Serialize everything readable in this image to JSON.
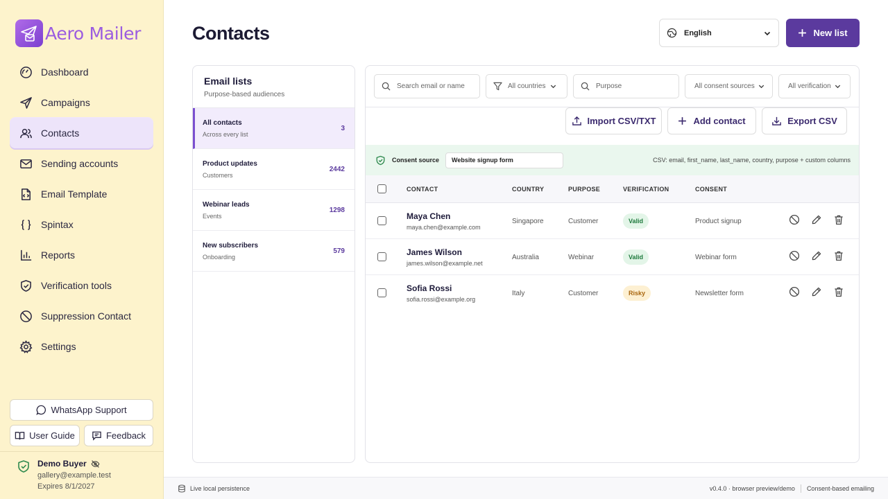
{
  "app": {
    "name": "Aero Mailer"
  },
  "nav": [
    {
      "label": "Dashboard",
      "icon": "dashboard-icon"
    },
    {
      "label": "Campaigns",
      "icon": "send-icon"
    },
    {
      "label": "Contacts",
      "icon": "users-icon",
      "active": true
    },
    {
      "label": "Sending accounts",
      "icon": "mail-icon"
    },
    {
      "label": "Email Template",
      "icon": "file-code-icon"
    },
    {
      "label": "Spintax",
      "icon": "braces-icon"
    },
    {
      "label": "Reports",
      "icon": "bar-chart-icon"
    },
    {
      "label": "Verification tools",
      "icon": "shield-check-icon"
    },
    {
      "label": "Suppression Contact",
      "icon": "ban-icon"
    },
    {
      "label": "Settings",
      "icon": "gear-icon"
    }
  ],
  "support": {
    "whatsapp": "WhatsApp Support",
    "guide": "User Guide",
    "feedback": "Feedback"
  },
  "user": {
    "name": "Demo Buyer",
    "email": "gallery@example.test",
    "expires": "Expires 8/1/2027"
  },
  "header": {
    "title": "Contacts",
    "language": "English",
    "new_list": "New list"
  },
  "lists": {
    "title": "Email lists",
    "subtitle": "Purpose-based audiences",
    "items": [
      {
        "name": "All contacts",
        "desc": "Across every list",
        "count": "3",
        "active": true
      },
      {
        "name": "Product updates",
        "desc": "Customers",
        "count": "2442"
      },
      {
        "name": "Webinar leads",
        "desc": "Events",
        "count": "1298"
      },
      {
        "name": "New subscribers",
        "desc": "Onboarding",
        "count": "579"
      }
    ]
  },
  "filters": {
    "search_placeholder": "Search email or name",
    "countries": "All countries",
    "purpose_placeholder": "Purpose",
    "consent_sources": "All consent sources",
    "verification": "All verification"
  },
  "actions": {
    "import": "Import CSV/TXT",
    "add": "Add contact",
    "export": "Export CSV"
  },
  "consent": {
    "label": "Consent source",
    "value": "Website signup form",
    "hint": "CSV: email, first_name, last_name, country, purpose + custom columns"
  },
  "table": {
    "headers": {
      "contact": "CONTACT",
      "country": "COUNTRY",
      "purpose": "PURPOSE",
      "verification": "VERIFICATION",
      "consent": "CONSENT"
    },
    "rows": [
      {
        "name": "Maya Chen",
        "email": "maya.chen@example.com",
        "country": "Singapore",
        "purpose": "Customer",
        "verification": "Valid",
        "consent": "Product signup"
      },
      {
        "name": "James Wilson",
        "email": "james.wilson@example.net",
        "country": "Australia",
        "purpose": "Webinar",
        "verification": "Valid",
        "consent": "Webinar form"
      },
      {
        "name": "Sofia Rossi",
        "email": "sofia.rossi@example.org",
        "country": "Italy",
        "purpose": "Customer",
        "verification": "Risky",
        "consent": "Newsletter form"
      }
    ]
  },
  "footer": {
    "left": "Live local persistence",
    "version": "v0.4.0 · browser preview/demo",
    "right": "Consent-based emailing"
  },
  "colors": {
    "accent": "#5b3a9e",
    "sidebar": "#fdf3cc",
    "valid_bg": "#e3f5e8",
    "valid_fg": "#1f7a3d",
    "risky_bg": "#fdf0d2",
    "risky_fg": "#a8650d"
  }
}
